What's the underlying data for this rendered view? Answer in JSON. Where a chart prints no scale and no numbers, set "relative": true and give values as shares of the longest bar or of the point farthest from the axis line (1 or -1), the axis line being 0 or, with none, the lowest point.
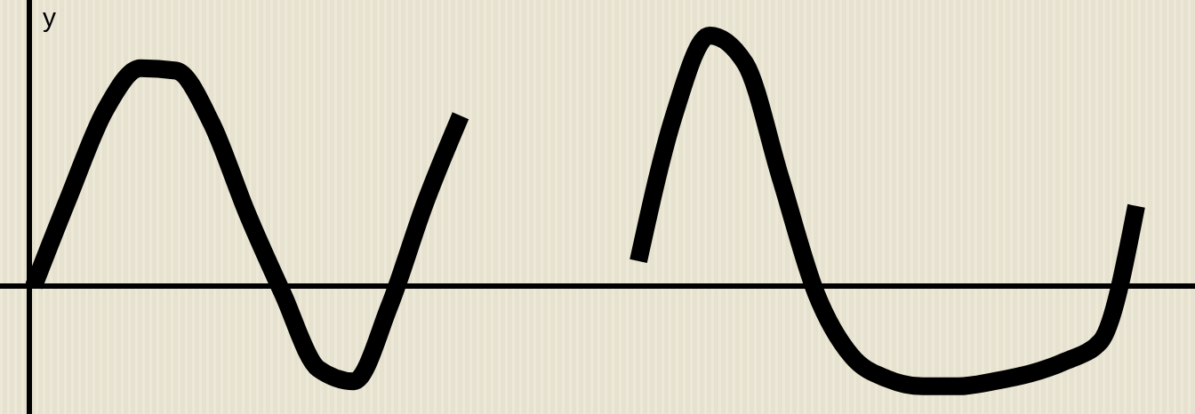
{
  "chart_data": {
    "type": "line",
    "relative": true,
    "ylabel": "y",
    "categories": [
      null,
      null,
      null,
      null,
      null,
      null,
      null,
      null,
      null,
      null,
      null,
      null,
      null,
      null,
      null,
      null,
      null,
      null,
      null,
      null,
      null,
      null,
      null,
      null,
      null,
      null,
      null,
      null,
      null,
      null,
      null,
      null
    ],
    "series": [
      {
        "color": "#000000",
        "values": [
          0,
          0.36,
          0.7,
          0.87,
          0.86,
          0.65,
          0.29,
          -0.03,
          -0.33,
          -0.38,
          -0.08,
          0.33,
          0.68,
          null,
          null,
          null,
          null,
          null,
          null,
          null,
          null,
          null,
          null,
          null,
          null,
          null,
          null,
          null,
          null,
          null,
          null,
          null
        ]
      },
      {
        "color": "#000000",
        "values": [
          null,
          null,
          null,
          null,
          null,
          null,
          null,
          null,
          null,
          null,
          null,
          null,
          null,
          null,
          null,
          null,
          null,
          0.1,
          0.68,
          1,
          0.89,
          0.43,
          -0.03,
          -0.28,
          -0.37,
          -0.4,
          -0.4,
          -0.38,
          -0.35,
          -0.3,
          -0.22,
          0.32
        ]
      }
    ],
    "marker": "none",
    "line_style": "solid"
  }
}
